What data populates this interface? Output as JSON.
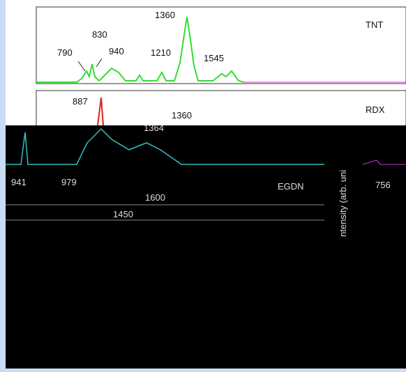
{
  "panels": [
    {
      "label": "TNT",
      "peaks": [
        "790",
        "830",
        "940",
        "1210",
        "1360",
        "1545"
      ]
    },
    {
      "label": "RDX",
      "peaks": [
        "887",
        "1360"
      ]
    },
    {
      "label": "EGDN",
      "peaks": [
        "941",
        "979",
        "1600",
        "1450",
        "756",
        "1364"
      ]
    }
  ],
  "axis_label": "ntensity (arb. uni"
}
